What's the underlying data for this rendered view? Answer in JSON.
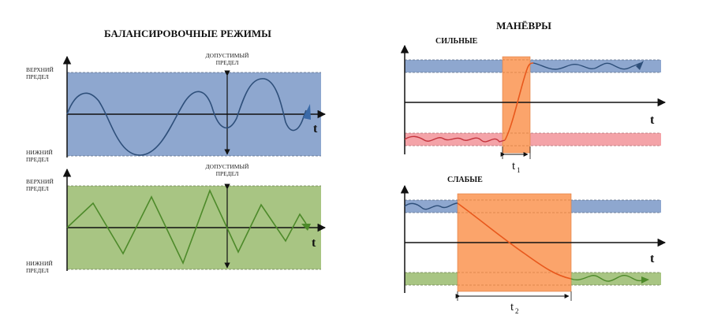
{
  "left": {
    "title": "БАЛАНСИРОВОЧНЫЕ РЕЖИМЫ",
    "upper_limit": [
      "ВЕРХНИЙ",
      "ПРЕДЕЛ"
    ],
    "lower_limit": [
      "НИЖНИЙ",
      "ПРЕДЕЛ"
    ],
    "allowed": [
      "ДОПУСТИМЫЙ",
      "ПРЕДЕЛ"
    ],
    "axis_label": "t"
  },
  "right": {
    "title": "МАНЁВРЫ",
    "strong_label": "СИЛЬНЫЕ",
    "weak_label": "СЛАБЫЕ",
    "axis_label": "t",
    "t1_main": "t",
    "t1_sub": "1",
    "t2_main": "t",
    "t2_sub": "2"
  },
  "colors": {
    "blue_band": "#8ea7cf",
    "green_band": "#a8c583",
    "red_band": "#f4a3a8",
    "orange": "#fba46b",
    "wave_blue": "#2e4f7a",
    "wave_green": "#4d8a2a",
    "wave_red": "#c4343d",
    "curve_orange": "#e8581c"
  }
}
